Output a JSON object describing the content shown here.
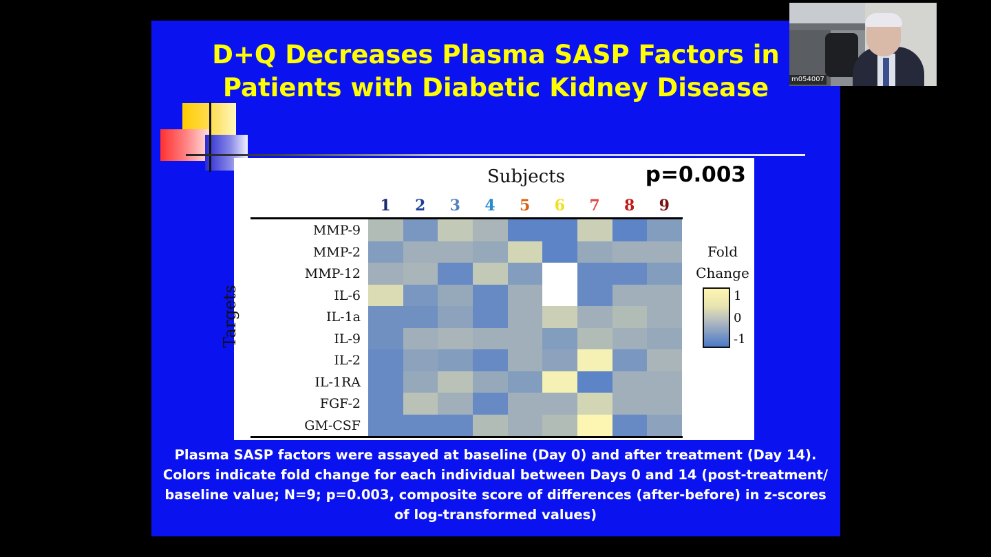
{
  "slide": {
    "title_line1": "D+Q Decreases Plasma SASP Factors in",
    "title_line2": "Patients with Diabetic Kidney Disease",
    "caption": "Plasma SASP factors were assayed at baseline (Day 0) and after treatment (Day 14). Colors indicate fold change for each individual between Days 0 and 14 (post-treatment/ baseline value; N=9; p=0.003, composite score of differences (after-before) in z-scores of log-transformed values)"
  },
  "webcam": {
    "name_tag": "m054007"
  },
  "colors": {
    "slide_bg": "#0a12f0",
    "title": "#ffff00",
    "high": "#fdf6b2",
    "mid": "#a9b5b8",
    "low": "#4a78c9",
    "missing": "#ffffff"
  },
  "chart_data": {
    "type": "heatmap",
    "title": "Subjects",
    "annotation": "p=0.003",
    "xlabel": "Subjects",
    "ylabel": "Targets",
    "columns": [
      "1",
      "2",
      "3",
      "4",
      "5",
      "6",
      "7",
      "8",
      "9"
    ],
    "column_colors": [
      "#1a2a6c",
      "#1c3f9a",
      "#4f7fc0",
      "#2a8ad0",
      "#d86010",
      "#f0e020",
      "#e04848",
      "#c01818",
      "#7a1010"
    ],
    "rows": [
      "MMP-9",
      "MMP-2",
      "MMP-12",
      "IL-6",
      "IL-1a",
      "IL-9",
      "IL-2",
      "IL-1RA",
      "FGF-2",
      "GM-CSF"
    ],
    "values": [
      [
        0.1,
        -0.5,
        0.3,
        0.0,
        -0.8,
        -0.8,
        0.4,
        -0.8,
        -0.4
      ],
      [
        -0.4,
        -0.1,
        -0.1,
        -0.2,
        0.5,
        -0.8,
        -0.2,
        -0.1,
        -0.1
      ],
      [
        -0.1,
        0.0,
        -0.7,
        0.3,
        -0.4,
        null,
        -0.7,
        -0.7,
        -0.4
      ],
      [
        0.6,
        -0.5,
        -0.2,
        -0.7,
        -0.1,
        null,
        -0.7,
        -0.1,
        -0.1
      ],
      [
        -0.6,
        -0.6,
        -0.3,
        -0.7,
        -0.1,
        0.4,
        -0.1,
        0.1,
        -0.1
      ],
      [
        -0.6,
        -0.1,
        0.0,
        -0.1,
        -0.1,
        -0.4,
        0.1,
        -0.1,
        -0.2
      ],
      [
        -0.7,
        -0.3,
        -0.4,
        -0.7,
        -0.1,
        -0.3,
        0.9,
        -0.5,
        0.0
      ],
      [
        -0.7,
        -0.2,
        0.2,
        -0.2,
        -0.4,
        0.9,
        -0.8,
        -0.1,
        -0.1
      ],
      [
        -0.7,
        0.2,
        -0.1,
        -0.7,
        -0.1,
        -0.1,
        0.5,
        -0.1,
        -0.1
      ],
      [
        -0.7,
        -0.7,
        -0.7,
        0.1,
        -0.1,
        0.1,
        1.0,
        -0.7,
        -0.3
      ]
    ],
    "legend": {
      "title_line1": "Fold",
      "title_line2": "Change",
      "ticks": [
        "1",
        "0",
        "-1"
      ]
    },
    "range": [
      -1,
      1
    ]
  }
}
